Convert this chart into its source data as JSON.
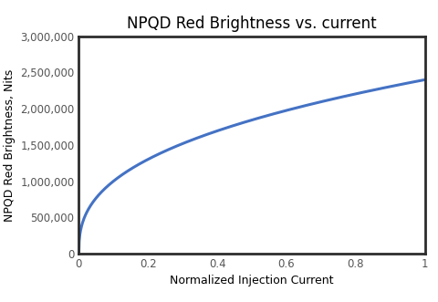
{
  "title": "NPQD Red Brightness vs. current",
  "xlabel": "Normalized Injection Current",
  "ylabel": "NPQD Red Brightness, Nits",
  "xlim": [
    0,
    1.0
  ],
  "ylim": [
    0,
    3000000
  ],
  "x_ticks": [
    0,
    0.2,
    0.4,
    0.6,
    0.8,
    1.0
  ],
  "y_ticks": [
    0,
    500000,
    1000000,
    1500000,
    2000000,
    2500000,
    3000000
  ],
  "line_color": "#4472C4",
  "line_width": 2.2,
  "background_color": "#ffffff",
  "outer_bg": "#ffffff",
  "title_fontsize": 12,
  "label_fontsize": 9,
  "tick_fontsize": 8.5,
  "curve_power": 0.38,
  "curve_scale": 2400000
}
